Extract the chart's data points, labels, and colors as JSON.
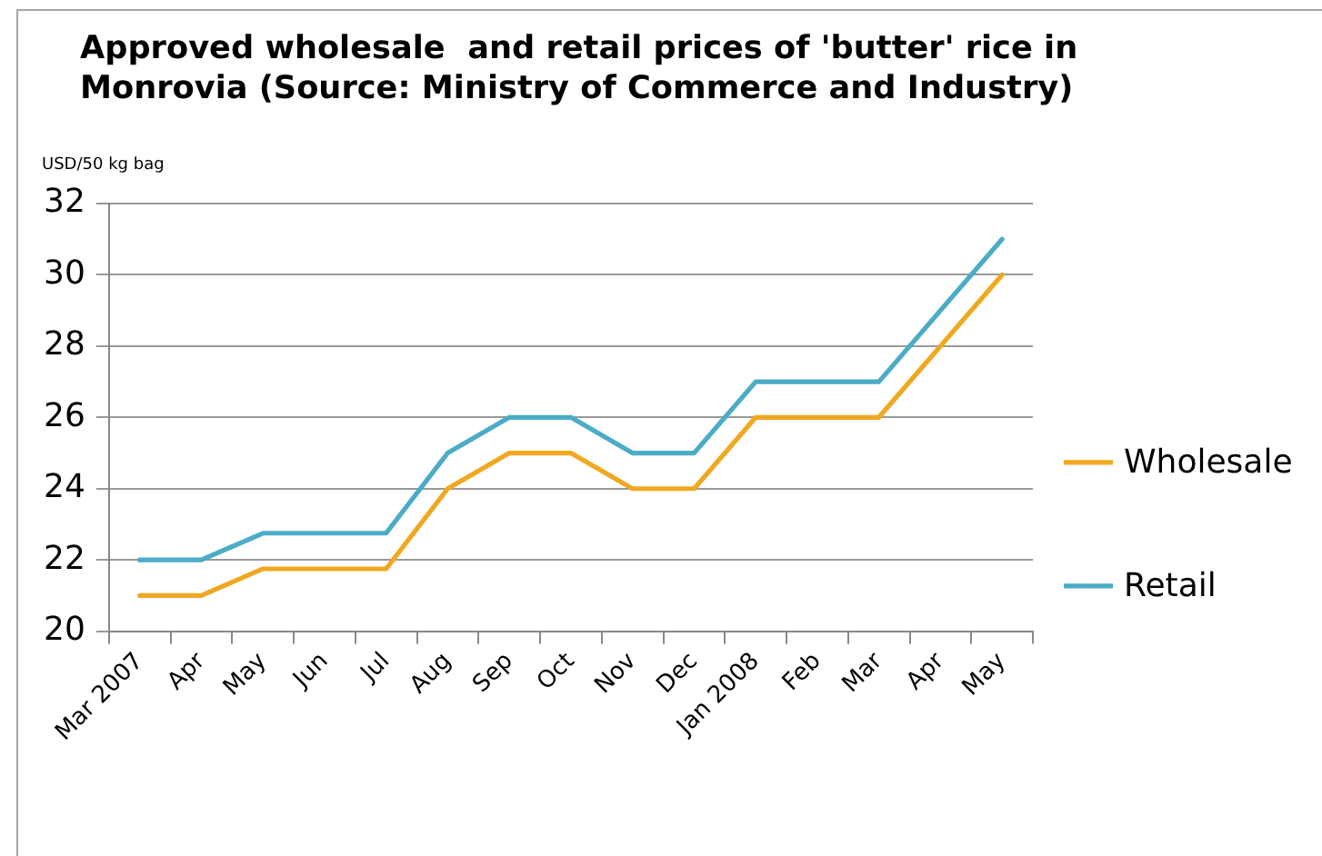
{
  "chart_data": {
    "type": "line",
    "title": "Approved wholesale  and retail prices of 'butter' rice in Monrovia (Source: Ministry of Commerce and Industry)",
    "ylabel": "USD/50 kg bag",
    "categories": [
      "Mar 2007",
      "Apr",
      "May",
      "Jun",
      "Jul",
      "Aug",
      "Sep",
      "Oct",
      "Nov",
      "Dec",
      "Jan 2008",
      "Feb",
      "Mar",
      "Apr",
      "May"
    ],
    "series": [
      {
        "name": "Wholesale",
        "color": "#f0a820",
        "values": [
          21,
          21,
          21.75,
          21.75,
          21.75,
          24,
          25,
          25,
          24,
          24,
          26,
          26,
          26,
          28,
          30
        ]
      },
      {
        "name": "Retail",
        "color": "#4bacc6",
        "values": [
          22,
          22,
          22.75,
          22.75,
          22.75,
          25,
          26,
          26,
          25,
          25,
          27,
          27,
          27,
          29,
          31
        ]
      }
    ],
    "ylim": [
      20,
      32
    ],
    "yticks": [
      20,
      22,
      24,
      26,
      28,
      30,
      32
    ],
    "grid": "y",
    "legend": "right",
    "marker": "none",
    "line_style": "solid"
  }
}
